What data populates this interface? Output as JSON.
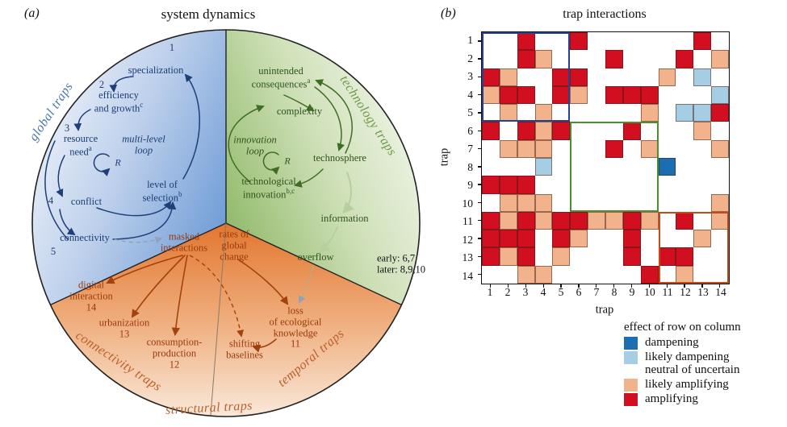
{
  "figure": {
    "panel_a_letter": "(a)",
    "panel_b_letter": "(b)"
  },
  "panel_a": {
    "title": "system dynamics",
    "sector_labels": {
      "global": "global traps",
      "technology": "technology traps",
      "connectivity": "connectivity traps",
      "temporal": "temporal traps",
      "structural": "structural traps"
    },
    "blue": {
      "specialization_num": "1",
      "specialization": "specialization",
      "efficiency_num": "2",
      "efficiency_line1": "efficiency",
      "efficiency_line2": "and growth",
      "efficiency_sup": "c",
      "resource_num": "3",
      "resource_line1": "resource",
      "resource_line2": "need",
      "resource_sup": "a",
      "loop_line1": "multi-level",
      "loop_line2": "loop",
      "loop_r": "R",
      "selection_line1": "level of",
      "selection_line2": "selection",
      "selection_sup": "b",
      "conflict_num": "4",
      "conflict": "conflict",
      "connectivity": "connectivity",
      "connectivity_num": "5"
    },
    "green": {
      "unintended_line1": "unintended",
      "unintended_line2": "consequences",
      "unintended_sup": "a",
      "complexity": "complexity",
      "loop_line1": "innovation",
      "loop_line2": "loop",
      "loop_r": "R",
      "technosphere": "technosphere",
      "innovation_line1": "technological",
      "innovation_line2": "innovation",
      "innovation_sup": "b,c",
      "information": "information",
      "overflow": "overflow",
      "early": "early: 6,7",
      "later": "later: 8,9,10"
    },
    "orange": {
      "masked_line1": "masked",
      "masked_line2": "interactions",
      "rates_line1": "rates of",
      "rates_line2": "global",
      "rates_line3": "change",
      "digital_line1": "digital",
      "digital_line2": "interaction",
      "digital_num": "14",
      "urbanization": "urbanization",
      "urbanization_num": "13",
      "consumption_line1": "consumption-",
      "consumption_line2": "production",
      "consumption_num": "12",
      "shifting_line1": "shifting",
      "shifting_line2": "baselines",
      "loss_line1": "loss",
      "loss_line2": "of ecological",
      "loss_line3": "knowledge",
      "loss_num": "11"
    }
  },
  "panel_b": {
    "title": "trap interactions",
    "x_axis_label": "trap",
    "y_axis_label": "trap",
    "legend": {
      "title": "effect of row on column",
      "items": [
        {
          "label": "dampening",
          "color": "#1b6fb0"
        },
        {
          "label": "likely dampening",
          "color": "#a5cde3"
        },
        {
          "label": "neutral of uncertain",
          "color": "none"
        },
        {
          "label": "likely amplifying",
          "color": "#f2b28c"
        },
        {
          "label": "amplifying",
          "color": "#d10f21"
        }
      ]
    }
  },
  "chart_data": {
    "type": "heatmap",
    "title": "trap interactions",
    "xlabel": "trap",
    "ylabel": "trap",
    "row_labels": [
      "1",
      "2",
      "3",
      "4",
      "5",
      "6",
      "7",
      "8",
      "9",
      "10",
      "11",
      "12",
      "13",
      "14"
    ],
    "col_labels": [
      "1",
      "2",
      "3",
      "4",
      "5",
      "6",
      "7",
      "8",
      "9",
      "10",
      "11",
      "12",
      "13",
      "14"
    ],
    "value_legend": {
      "0": "neutral of uncertain",
      "1": "dampening",
      "2": "likely dampening",
      "3": "likely amplifying",
      "4": "amplifying"
    },
    "cell_colors": {
      "0": "#ffffff",
      "1": "#1b6fb0",
      "2": "#a5cde3",
      "3": "#f2b28c",
      "4": "#d10f21"
    },
    "matrix": [
      [
        0,
        0,
        4,
        0,
        0,
        4,
        0,
        0,
        0,
        0,
        0,
        0,
        4,
        0
      ],
      [
        0,
        0,
        4,
        3,
        0,
        0,
        0,
        4,
        0,
        0,
        0,
        4,
        0,
        3
      ],
      [
        4,
        3,
        0,
        0,
        4,
        4,
        0,
        0,
        0,
        0,
        3,
        0,
        2,
        0
      ],
      [
        3,
        4,
        4,
        0,
        4,
        3,
        0,
        4,
        4,
        4,
        0,
        0,
        0,
        2
      ],
      [
        0,
        3,
        0,
        3,
        0,
        0,
        0,
        0,
        0,
        3,
        0,
        2,
        2,
        4
      ],
      [
        4,
        0,
        4,
        3,
        4,
        0,
        0,
        0,
        4,
        0,
        0,
        0,
        3,
        0
      ],
      [
        0,
        3,
        3,
        3,
        0,
        0,
        0,
        4,
        0,
        3,
        0,
        0,
        0,
        3
      ],
      [
        0,
        0,
        0,
        2,
        0,
        0,
        0,
        0,
        0,
        0,
        1,
        0,
        0,
        0
      ],
      [
        4,
        4,
        4,
        0,
        0,
        0,
        0,
        0,
        0,
        0,
        0,
        0,
        0,
        0
      ],
      [
        0,
        3,
        3,
        3,
        0,
        0,
        0,
        0,
        0,
        0,
        0,
        0,
        0,
        3
      ],
      [
        4,
        3,
        4,
        3,
        4,
        4,
        3,
        3,
        4,
        3,
        0,
        4,
        0,
        3
      ],
      [
        4,
        4,
        4,
        0,
        4,
        3,
        0,
        0,
        4,
        0,
        0,
        0,
        3,
        0
      ],
      [
        4,
        3,
        4,
        0,
        3,
        0,
        0,
        0,
        4,
        0,
        4,
        4,
        0,
        0
      ],
      [
        0,
        0,
        3,
        3,
        0,
        0,
        0,
        0,
        0,
        4,
        0,
        3,
        0,
        0
      ]
    ],
    "group_boxes": [
      {
        "name": "blue",
        "r0": 1,
        "c0": 1,
        "r1": 5,
        "c1": 5,
        "color": "#27418f"
      },
      {
        "name": "green",
        "r0": 6,
        "c0": 6,
        "r1": 10,
        "c1": 10,
        "color": "#4a8e2f"
      },
      {
        "name": "orange",
        "r0": 11,
        "c0": 11,
        "r1": 14,
        "c1": 14,
        "color": "#c44a1a"
      }
    ]
  }
}
